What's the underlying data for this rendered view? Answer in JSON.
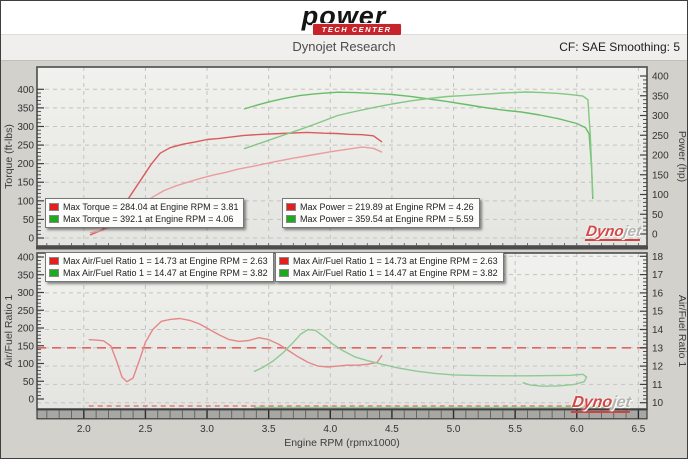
{
  "header": {
    "logo_text": "power",
    "logo_banner": "TECH CENTER",
    "title": "Dynojet Research",
    "smoothing_label": "CF: SAE Smoothing: 5"
  },
  "watermark": {
    "part1": "Dyno",
    "part2": "jet"
  },
  "top_legend": {
    "boxes": [
      {
        "rows": [
          {
            "color": "#e41f1f",
            "text": "Max Torque = 284.04 at Engine RPM = 3.81"
          },
          {
            "color": "#1daa1d",
            "text": "Max Torque = 392.1 at Engine RPM = 4.06"
          }
        ]
      },
      {
        "rows": [
          {
            "color": "#e41f1f",
            "text": "Max Power = 219.89 at Engine RPM = 4.26"
          },
          {
            "color": "#1daa1d",
            "text": "Max Power = 359.54 at Engine RPM = 5.59"
          }
        ]
      }
    ]
  },
  "bottom_legend": {
    "boxes": [
      {
        "rows": [
          {
            "color": "#e41f1f",
            "text": "Max Air/Fuel Ratio 1 = 14.73 at Engine RPM = 2.63"
          },
          {
            "color": "#1daa1d",
            "text": "Max Air/Fuel Ratio 1 = 14.47 at Engine RPM = 3.82"
          }
        ]
      },
      {
        "rows": [
          {
            "color": "#e41f1f",
            "text": "Max Air/Fuel Ratio 1 = 14.73 at Engine RPM = 2.63"
          },
          {
            "color": "#1daa1d",
            "text": "Max Air/Fuel Ratio 1 = 14.47 at Engine RPM = 3.82"
          }
        ]
      }
    ]
  },
  "chart_data": [
    {
      "type": "line",
      "grid_axis": "left",
      "x_axis": {
        "label": "Engine RPM (rpmx1000)",
        "range": [
          1.62,
          6.57
        ],
        "ticks": [
          2.0,
          2.5,
          3.0,
          3.5,
          4.0,
          4.5,
          5.0,
          5.5,
          6.0,
          6.5
        ],
        "minor_step": 0.1
      },
      "left_axis": {
        "label": "Torque (ft-lbs)",
        "range": [
          0,
          400
        ],
        "tick_step": 50,
        "minor_step": 10
      },
      "right_axis": {
        "label": "Power (hp)",
        "range": [
          0,
          400
        ],
        "tick_step": 50,
        "minor_step": 10
      },
      "series": [
        {
          "name": "torque-run1",
          "axis": "left",
          "color": "#d95b5b",
          "points": [
            [
              2.05,
              8
            ],
            [
              2.15,
              22
            ],
            [
              2.25,
              55
            ],
            [
              2.35,
              100
            ],
            [
              2.45,
              150
            ],
            [
              2.55,
              200
            ],
            [
              2.62,
              228
            ],
            [
              2.7,
              243
            ],
            [
              2.8,
              252
            ],
            [
              2.9,
              258
            ],
            [
              3.0,
              265
            ],
            [
              3.1,
              268
            ],
            [
              3.2,
              272
            ],
            [
              3.3,
              276
            ],
            [
              3.45,
              279
            ],
            [
              3.6,
              281
            ],
            [
              3.81,
              284.04
            ],
            [
              3.95,
              282
            ],
            [
              4.05,
              281
            ],
            [
              4.15,
              279
            ],
            [
              4.26,
              278
            ],
            [
              4.35,
              275
            ],
            [
              4.42,
              258
            ]
          ]
        },
        {
          "name": "power-run1",
          "axis": "right",
          "color": "#ea9d9d",
          "points": [
            [
              2.05,
              3
            ],
            [
              2.15,
              9
            ],
            [
              2.25,
              24
            ],
            [
              2.35,
              45
            ],
            [
              2.45,
              68
            ],
            [
              2.55,
              92
            ],
            [
              2.65,
              110
            ],
            [
              2.75,
              122
            ],
            [
              2.85,
              132
            ],
            [
              2.95,
              141
            ],
            [
              3.05,
              149
            ],
            [
              3.15,
              156
            ],
            [
              3.25,
              164
            ],
            [
              3.4,
              173
            ],
            [
              3.55,
              183
            ],
            [
              3.7,
              192
            ],
            [
              3.85,
              200
            ],
            [
              4.0,
              208
            ],
            [
              4.1,
              213
            ],
            [
              4.26,
              219.89
            ],
            [
              4.35,
              217
            ],
            [
              4.42,
              207
            ]
          ]
        },
        {
          "name": "torque-run2",
          "axis": "left",
          "color": "#68bd68",
          "points": [
            [
              3.3,
              347
            ],
            [
              3.4,
              357
            ],
            [
              3.5,
              366
            ],
            [
              3.62,
              375
            ],
            [
              3.75,
              383
            ],
            [
              3.88,
              388
            ],
            [
              4.06,
              392.1
            ],
            [
              4.2,
              391
            ],
            [
              4.35,
              389
            ],
            [
              4.5,
              386
            ],
            [
              4.65,
              381
            ],
            [
              4.8,
              374
            ],
            [
              4.95,
              367
            ],
            [
              5.1,
              359
            ],
            [
              5.25,
              351
            ],
            [
              5.4,
              344
            ],
            [
              5.55,
              339
            ],
            [
              5.7,
              331
            ],
            [
              5.85,
              321
            ],
            [
              6.0,
              308
            ],
            [
              6.07,
              297
            ],
            [
              6.1,
              280
            ],
            [
              6.12,
              190
            ],
            [
              6.13,
              105
            ]
          ]
        },
        {
          "name": "power-run2",
          "axis": "right",
          "color": "#83c883",
          "points": [
            [
              3.3,
              216
            ],
            [
              3.45,
              232
            ],
            [
              3.6,
              248
            ],
            [
              3.75,
              264
            ],
            [
              3.9,
              281
            ],
            [
              4.06,
              300
            ],
            [
              4.2,
              310
            ],
            [
              4.35,
              320
            ],
            [
              4.5,
              329
            ],
            [
              4.65,
              337
            ],
            [
              4.8,
              343
            ],
            [
              4.95,
              348
            ],
            [
              5.1,
              351
            ],
            [
              5.25,
              354
            ],
            [
              5.4,
              357
            ],
            [
              5.59,
              359.54
            ],
            [
              5.72,
              358
            ],
            [
              5.85,
              356
            ],
            [
              5.95,
              353
            ],
            [
              6.05,
              349
            ],
            [
              6.09,
              340
            ],
            [
              6.11,
              250
            ],
            [
              6.13,
              95
            ]
          ]
        }
      ]
    },
    {
      "type": "line",
      "grid_axis": "right",
      "x_axis": {
        "label": "Engine RPM (rpmx1000)",
        "range": [
          1.62,
          6.57
        ],
        "ticks": [
          2.0,
          2.5,
          3.0,
          3.5,
          4.0,
          4.5,
          5.0,
          5.5,
          6.0,
          6.5
        ],
        "minor_step": 0.1
      },
      "left_axis": {
        "label": "Air/Fuel Ratio 1",
        "range": [
          0,
          400
        ],
        "tick_step": 50,
        "minor_step": 10
      },
      "right_axis": {
        "label": "Air/Fuel Ratio 1",
        "range": [
          10,
          18
        ],
        "tick_step": 1,
        "minor_step": 0.2
      },
      "reference_line": {
        "axis": "right",
        "value": 13.0,
        "color": "#e06565",
        "style": "dashed"
      },
      "edge_markers": [
        {
          "axis": "right",
          "value": 9.82,
          "from_rpm": 2.04,
          "to_rpm": 6.1,
          "color": "#e06565",
          "style": "dashed"
        },
        {
          "axis": "right",
          "value": 9.74,
          "from_rpm": 3.38,
          "to_rpm": 6.3,
          "color": "#8fca93",
          "style": "solid"
        }
      ],
      "series": [
        {
          "name": "afr-run1",
          "axis": "right",
          "color": "#e58787",
          "points": [
            [
              2.04,
              13.45
            ],
            [
              2.1,
              13.42
            ],
            [
              2.16,
              13.38
            ],
            [
              2.22,
              13.1
            ],
            [
              2.27,
              12.2
            ],
            [
              2.31,
              11.4
            ],
            [
              2.35,
              11.15
            ],
            [
              2.4,
              11.35
            ],
            [
              2.45,
              12.3
            ],
            [
              2.5,
              13.3
            ],
            [
              2.56,
              14.0
            ],
            [
              2.63,
              14.45
            ],
            [
              2.7,
              14.55
            ],
            [
              2.78,
              14.6
            ],
            [
              2.86,
              14.5
            ],
            [
              2.94,
              14.3
            ],
            [
              3.02,
              14.0
            ],
            [
              3.1,
              13.7
            ],
            [
              3.18,
              13.45
            ],
            [
              3.26,
              13.35
            ],
            [
              3.34,
              13.4
            ],
            [
              3.42,
              13.55
            ],
            [
              3.5,
              13.45
            ],
            [
              3.58,
              13.2
            ],
            [
              3.66,
              12.85
            ],
            [
              3.74,
              12.5
            ],
            [
              3.82,
              12.2
            ],
            [
              3.9,
              12.0
            ],
            [
              3.98,
              11.95
            ],
            [
              4.06,
              12.0
            ],
            [
              4.14,
              12.05
            ],
            [
              4.22,
              12.05
            ],
            [
              4.3,
              12.1
            ],
            [
              4.38,
              12.2
            ],
            [
              4.42,
              12.6
            ]
          ]
        },
        {
          "name": "afr-run2",
          "axis": "right",
          "color": "#8fca93",
          "points": [
            [
              3.38,
              11.7
            ],
            [
              3.46,
              11.95
            ],
            [
              3.54,
              12.3
            ],
            [
              3.62,
              12.75
            ],
            [
              3.7,
              13.3
            ],
            [
              3.76,
              13.75
            ],
            [
              3.82,
              14.0
            ],
            [
              3.88,
              13.95
            ],
            [
              3.95,
              13.6
            ],
            [
              4.02,
              13.2
            ],
            [
              4.1,
              12.85
            ],
            [
              4.2,
              12.5
            ],
            [
              4.3,
              12.3
            ],
            [
              4.42,
              12.1
            ],
            [
              4.55,
              11.9
            ],
            [
              4.7,
              11.72
            ],
            [
              4.85,
              11.6
            ],
            [
              5.0,
              11.52
            ],
            [
              5.2,
              11.48
            ],
            [
              5.4,
              11.47
            ],
            [
              5.6,
              11.47
            ],
            [
              5.8,
              11.48
            ],
            [
              5.95,
              11.5
            ],
            [
              6.05,
              11.55
            ],
            [
              6.08,
              11.4
            ],
            [
              6.06,
              11.15
            ],
            [
              5.98,
              11.0
            ],
            [
              5.85,
              10.92
            ],
            [
              5.72,
              10.9
            ],
            [
              5.62,
              10.97
            ],
            [
              5.56,
              11.1
            ]
          ]
        }
      ]
    }
  ]
}
